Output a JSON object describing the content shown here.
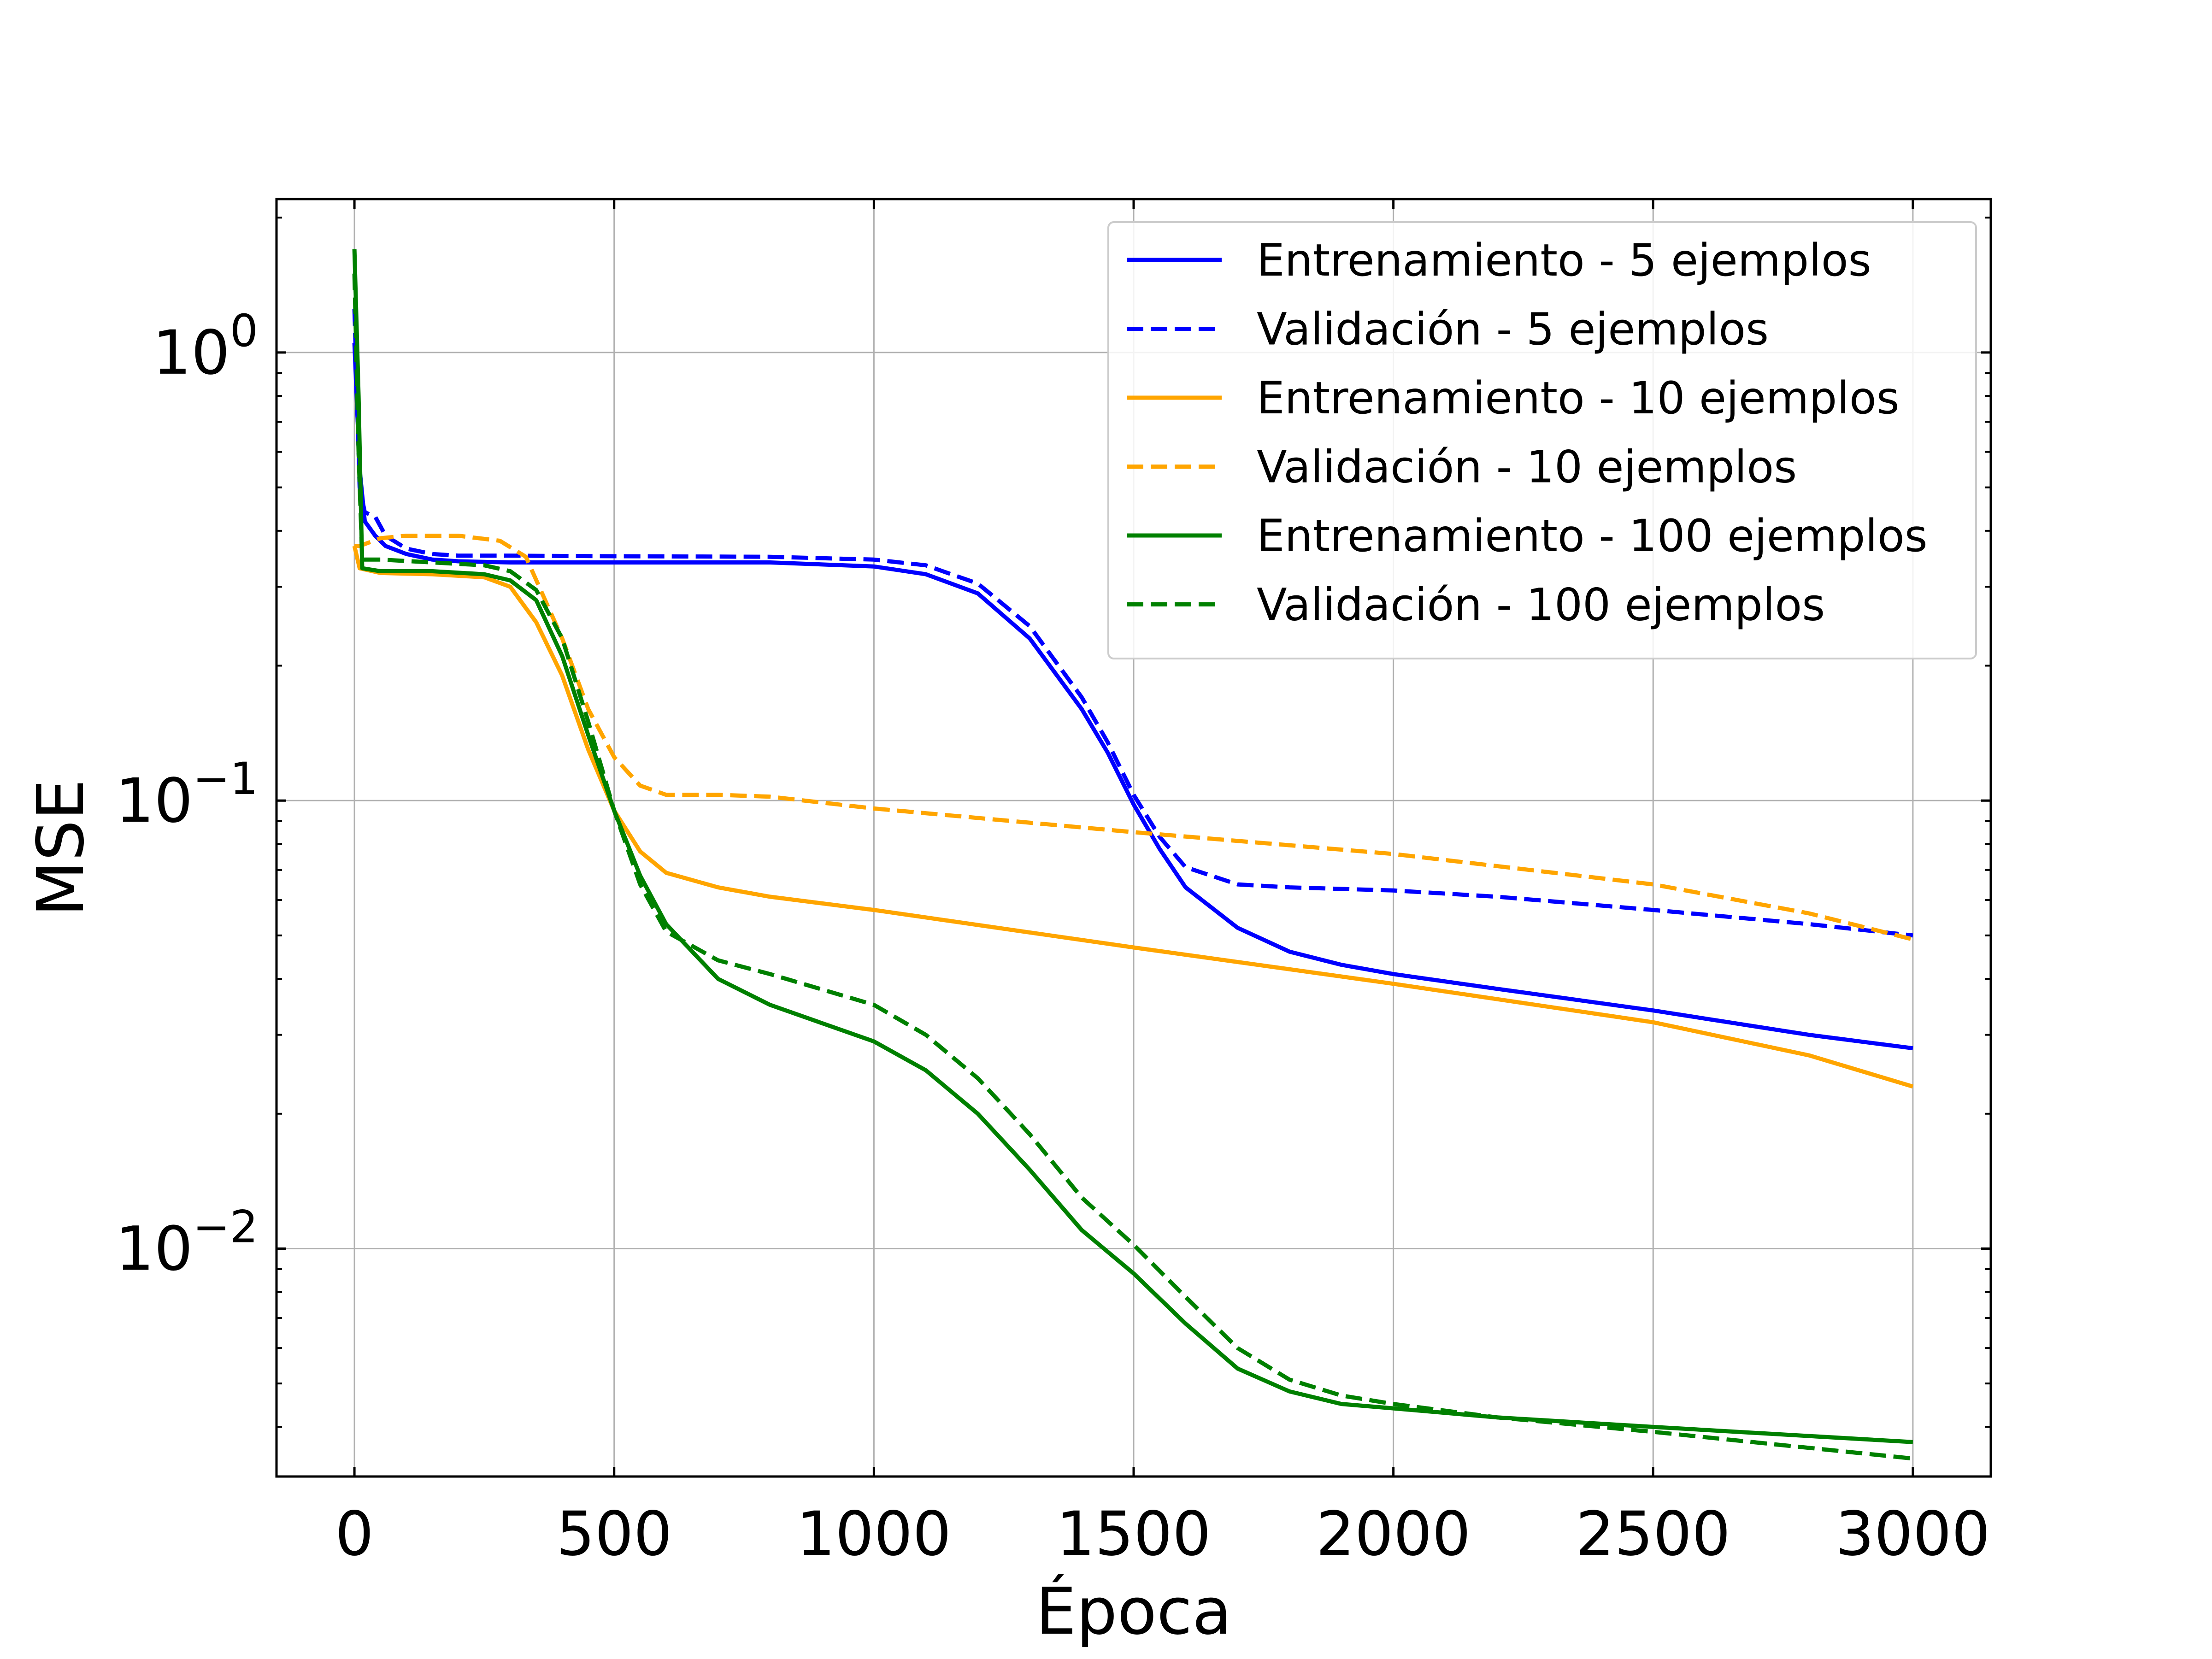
{
  "chart_data": {
    "type": "line",
    "xlabel": "Época",
    "ylabel": "MSE",
    "y_scale": "log",
    "xlim": [
      -150,
      3150
    ],
    "ylim": [
      0.0031,
      2.2
    ],
    "grid": true,
    "legend_placement": "top-right",
    "x_ticks": [
      {
        "value": 0,
        "label": "0"
      },
      {
        "value": 500,
        "label": "500"
      },
      {
        "value": 1000,
        "label": "1000"
      },
      {
        "value": 1500,
        "label": "1500"
      },
      {
        "value": 2000,
        "label": "2000"
      },
      {
        "value": 2500,
        "label": "2500"
      },
      {
        "value": 3000,
        "label": "3000"
      }
    ],
    "y_ticks": [
      {
        "value": 1,
        "base": "10",
        "exp": "0"
      },
      {
        "value": 0.1,
        "base": "10",
        "exp": "−1"
      },
      {
        "value": 0.01,
        "base": "10",
        "exp": "−2"
      }
    ],
    "series": [
      {
        "name": "Entrenamiento - 5 ejemplos",
        "color": "#0000ff",
        "dash": "solid",
        "points": [
          [
            0,
            1.05
          ],
          [
            10,
            0.55
          ],
          [
            20,
            0.42
          ],
          [
            40,
            0.39
          ],
          [
            60,
            0.37
          ],
          [
            100,
            0.355
          ],
          [
            150,
            0.345
          ],
          [
            200,
            0.342
          ],
          [
            300,
            0.34
          ],
          [
            500,
            0.34
          ],
          [
            800,
            0.34
          ],
          [
            1000,
            0.333
          ],
          [
            1100,
            0.32
          ],
          [
            1200,
            0.29
          ],
          [
            1300,
            0.23
          ],
          [
            1400,
            0.16
          ],
          [
            1450,
            0.128
          ],
          [
            1500,
            0.098
          ],
          [
            1550,
            0.078
          ],
          [
            1600,
            0.064
          ],
          [
            1700,
            0.052
          ],
          [
            1800,
            0.046
          ],
          [
            1900,
            0.043
          ],
          [
            2000,
            0.041
          ],
          [
            2200,
            0.038
          ],
          [
            2500,
            0.034
          ],
          [
            2800,
            0.03
          ],
          [
            3000,
            0.028
          ]
        ]
      },
      {
        "name": "Validación - 5 ejemplos",
        "color": "#0000ff",
        "dash": "dashed",
        "points": [
          [
            0,
            1.25
          ],
          [
            10,
            0.5
          ],
          [
            20,
            0.44
          ],
          [
            40,
            0.43
          ],
          [
            60,
            0.39
          ],
          [
            100,
            0.365
          ],
          [
            150,
            0.355
          ],
          [
            200,
            0.352
          ],
          [
            300,
            0.352
          ],
          [
            500,
            0.351
          ],
          [
            800,
            0.35
          ],
          [
            1000,
            0.345
          ],
          [
            1100,
            0.335
          ],
          [
            1200,
            0.305
          ],
          [
            1300,
            0.245
          ],
          [
            1400,
            0.17
          ],
          [
            1450,
            0.135
          ],
          [
            1500,
            0.103
          ],
          [
            1550,
            0.083
          ],
          [
            1600,
            0.071
          ],
          [
            1700,
            0.065
          ],
          [
            1800,
            0.064
          ],
          [
            2000,
            0.063
          ],
          [
            2200,
            0.061
          ],
          [
            2500,
            0.057
          ],
          [
            2800,
            0.053
          ],
          [
            3000,
            0.05
          ]
        ]
      },
      {
        "name": "Entrenamiento - 10 ejemplos",
        "color": "#ffa500",
        "dash": "solid",
        "points": [
          [
            0,
            0.37
          ],
          [
            10,
            0.33
          ],
          [
            50,
            0.322
          ],
          [
            150,
            0.32
          ],
          [
            250,
            0.315
          ],
          [
            300,
            0.3
          ],
          [
            350,
            0.25
          ],
          [
            400,
            0.19
          ],
          [
            450,
            0.13
          ],
          [
            500,
            0.095
          ],
          [
            550,
            0.077
          ],
          [
            600,
            0.069
          ],
          [
            700,
            0.064
          ],
          [
            800,
            0.061
          ],
          [
            1000,
            0.057
          ],
          [
            1500,
            0.047
          ],
          [
            2000,
            0.039
          ],
          [
            2500,
            0.032
          ],
          [
            2800,
            0.027
          ],
          [
            3000,
            0.023
          ]
        ]
      },
      {
        "name": "Validación - 10 ejemplos",
        "color": "#ffa500",
        "dash": "dashed",
        "points": [
          [
            0,
            0.37
          ],
          [
            10,
            0.37
          ],
          [
            50,
            0.385
          ],
          [
            100,
            0.39
          ],
          [
            200,
            0.39
          ],
          [
            280,
            0.38
          ],
          [
            330,
            0.35
          ],
          [
            400,
            0.23
          ],
          [
            450,
            0.16
          ],
          [
            500,
            0.125
          ],
          [
            550,
            0.108
          ],
          [
            600,
            0.103
          ],
          [
            700,
            0.103
          ],
          [
            800,
            0.102
          ],
          [
            1000,
            0.096
          ],
          [
            1500,
            0.085
          ],
          [
            2000,
            0.076
          ],
          [
            2500,
            0.065
          ],
          [
            2800,
            0.056
          ],
          [
            3000,
            0.049
          ]
        ]
      },
      {
        "name": "Entrenamiento - 100 ejemplos",
        "color": "#008000",
        "dash": "solid",
        "points": [
          [
            0,
            1.7
          ],
          [
            8,
            0.8
          ],
          [
            15,
            0.33
          ],
          [
            50,
            0.325
          ],
          [
            150,
            0.325
          ],
          [
            250,
            0.32
          ],
          [
            300,
            0.31
          ],
          [
            350,
            0.28
          ],
          [
            400,
            0.21
          ],
          [
            450,
            0.14
          ],
          [
            500,
            0.095
          ],
          [
            550,
            0.068
          ],
          [
            600,
            0.053
          ],
          [
            700,
            0.04
          ],
          [
            800,
            0.035
          ],
          [
            1000,
            0.029
          ],
          [
            1100,
            0.025
          ],
          [
            1200,
            0.02
          ],
          [
            1300,
            0.015
          ],
          [
            1400,
            0.011
          ],
          [
            1500,
            0.0088
          ],
          [
            1600,
            0.0068
          ],
          [
            1700,
            0.0054
          ],
          [
            1800,
            0.0048
          ],
          [
            1900,
            0.0045
          ],
          [
            2000,
            0.0044
          ],
          [
            2200,
            0.0042
          ],
          [
            2500,
            0.004
          ],
          [
            3000,
            0.0037
          ]
        ]
      },
      {
        "name": "Validación - 100 ejemplos",
        "color": "#008000",
        "dash": "dashed",
        "points": [
          [
            0,
            1.5
          ],
          [
            8,
            0.6
          ],
          [
            15,
            0.345
          ],
          [
            50,
            0.345
          ],
          [
            150,
            0.34
          ],
          [
            250,
            0.335
          ],
          [
            300,
            0.325
          ],
          [
            350,
            0.295
          ],
          [
            400,
            0.23
          ],
          [
            450,
            0.15
          ],
          [
            500,
            0.095
          ],
          [
            550,
            0.065
          ],
          [
            600,
            0.051
          ],
          [
            700,
            0.044
          ],
          [
            800,
            0.041
          ],
          [
            1000,
            0.035
          ],
          [
            1100,
            0.03
          ],
          [
            1200,
            0.024
          ],
          [
            1300,
            0.018
          ],
          [
            1400,
            0.013
          ],
          [
            1500,
            0.0102
          ],
          [
            1600,
            0.0078
          ],
          [
            1700,
            0.006
          ],
          [
            1800,
            0.0051
          ],
          [
            1900,
            0.0047
          ],
          [
            2000,
            0.0045
          ],
          [
            2200,
            0.0042
          ],
          [
            2500,
            0.0039
          ],
          [
            3000,
            0.0034
          ]
        ]
      }
    ]
  }
}
